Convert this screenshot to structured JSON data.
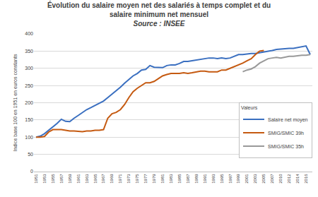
{
  "chart_data": {
    "type": "line",
    "title": "Évolution du salaire moyen net des salariés à temps complet et du salaire minimum net mensuel",
    "subtitle": "Source : INSEE",
    "y_label": "Indice base 100 en 1951 en euros constants",
    "legend_title": "Valeurs",
    "legend": "lower right",
    "grid": true,
    "categories": [
      "1951",
      null,
      "1953",
      null,
      "1955",
      null,
      "1957",
      null,
      "1959",
      null,
      "1961",
      null,
      "1963",
      null,
      "1965",
      null,
      "1967",
      null,
      "1969",
      null,
      "1971",
      null,
      "1973",
      null,
      "1975",
      null,
      "1977",
      null,
      "1979",
      null,
      "1981",
      null,
      "1983",
      null,
      "1985",
      null,
      "1987",
      null,
      "1989",
      null,
      "1991",
      null,
      "1993",
      null,
      "1995",
      null,
      "1997",
      null,
      "1999",
      null,
      "2001",
      null,
      "2003",
      null,
      "2005",
      null,
      "2007",
      null,
      "2010",
      null,
      "2012",
      null,
      "2014",
      null,
      "2016",
      null
    ],
    "ylim": [
      0,
      400
    ],
    "yticks": [
      0,
      50,
      100,
      150,
      200,
      250,
      300,
      350,
      400
    ],
    "series": [
      {
        "name": "Salaire net moyen",
        "color": "#3a6fc0",
        "values": [
          100,
          103,
          110,
          120,
          130,
          140,
          152,
          146,
          145,
          155,
          163,
          172,
          180,
          186,
          192,
          198,
          205,
          215,
          225,
          235,
          245,
          257,
          268,
          278,
          285,
          295,
          297,
          308,
          303,
          303,
          302,
          308,
          310,
          310,
          314,
          320,
          320,
          322,
          324,
          326,
          328,
          330,
          330,
          328,
          330,
          328,
          330,
          335,
          340,
          340,
          342,
          343,
          343,
          345,
          348,
          350,
          352,
          355,
          356,
          358,
          358,
          358,
          360,
          362,
          365,
          340
        ]
      },
      {
        "name": "SMIG/SMIC 39h",
        "color": "#c55a11",
        "values": [
          100,
          100,
          102,
          115,
          122,
          122,
          122,
          120,
          118,
          118,
          117,
          116,
          118,
          118,
          120,
          120,
          122,
          155,
          168,
          172,
          180,
          195,
          215,
          232,
          242,
          250,
          258,
          258,
          262,
          270,
          278,
          282,
          285,
          285,
          285,
          287,
          285,
          287,
          290,
          292,
          292,
          290,
          290,
          290,
          295,
          295,
          300,
          305,
          310,
          315,
          322,
          328,
          340,
          350,
          352,
          null,
          null,
          null,
          null,
          null,
          null,
          null,
          null,
          null,
          null,
          null
        ]
      },
      {
        "name": "SMIG/SMIC 35h",
        "color": "#999999",
        "values": [
          null,
          null,
          null,
          null,
          null,
          null,
          null,
          null,
          null,
          null,
          null,
          null,
          null,
          null,
          null,
          null,
          null,
          null,
          null,
          null,
          null,
          null,
          null,
          null,
          null,
          null,
          null,
          null,
          null,
          null,
          null,
          null,
          null,
          null,
          null,
          null,
          null,
          null,
          null,
          null,
          null,
          null,
          null,
          null,
          null,
          null,
          null,
          null,
          null,
          290,
          295,
          298,
          305,
          315,
          322,
          328,
          330,
          332,
          330,
          333,
          335,
          335,
          337,
          338,
          338,
          340
        ]
      }
    ]
  }
}
